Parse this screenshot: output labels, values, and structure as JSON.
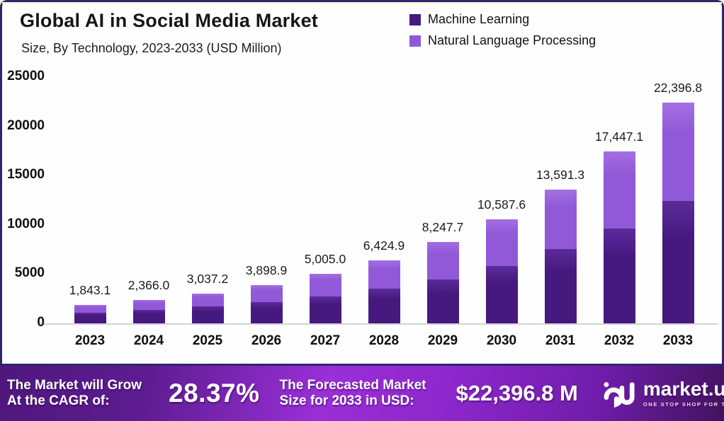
{
  "header": {
    "title": "Global AI in Social Media Market",
    "subtitle": "Size, By Technology, 2023-2033 (USD Million)"
  },
  "legend": [
    {
      "label": "Machine Learning",
      "color": "#46197f"
    },
    {
      "label": "Natural Language Processing",
      "color": "#9159d8"
    }
  ],
  "chart_data": {
    "type": "bar",
    "stacked": true,
    "title": "Global AI in Social Media Market Size, By Technology, 2023-2033 (USD Million)",
    "categories": [
      "2023",
      "2024",
      "2025",
      "2026",
      "2027",
      "2028",
      "2029",
      "2030",
      "2031",
      "2032",
      "2033"
    ],
    "series": [
      {
        "name": "Machine Learning",
        "color": "#46197f",
        "highlight": "#5c2b9a",
        "values": [
          1050,
          1340,
          1720,
          2120,
          2730,
          3510,
          4480,
          5800,
          7520,
          9640,
          12460
        ]
      },
      {
        "name": "Natural Language Processing",
        "color": "#9159d8",
        "highlight": "#a46fe3",
        "values": [
          793.1,
          1026.0,
          1317.2,
          1778.9,
          2275.0,
          2914.9,
          3767.7,
          4787.6,
          6071.3,
          7807.1,
          9936.8
        ]
      }
    ],
    "totals": [
      1843.1,
      2366.0,
      3037.2,
      3898.9,
      5005.0,
      6424.9,
      8247.7,
      10587.6,
      13591.3,
      17447.1,
      22396.8
    ],
    "total_labels": [
      "1,843.1",
      "2,366.0",
      "3,037.2",
      "3,898.9",
      "5,005.0",
      "6,424.9",
      "8,247.7",
      "10,587.6",
      "13,591.3",
      "17,447.1",
      "22,396.8"
    ],
    "xlabel": "",
    "ylabel": "",
    "ylim": [
      0,
      25000
    ],
    "yticks": [
      0,
      5000,
      10000,
      15000,
      20000,
      25000
    ],
    "ytick_labels": [
      "0",
      "5000",
      "10000",
      "15000",
      "20000",
      "25000"
    ],
    "grid": false,
    "legend_position": "top-right"
  },
  "footer": {
    "cagr_line1": "The Market will Grow",
    "cagr_line2": "At the CAGR of:",
    "cagr_value": "28.37%",
    "forecast_line1": "The Forecasted Market",
    "forecast_line2": "Size for 2033 in USD:",
    "forecast_value": "$22,396.8 M",
    "brand_name": "market.us",
    "brand_tagline": "ONE STOP SHOP FOR THE REPORTS"
  },
  "colors": {
    "frame_border": "#30266b",
    "card_background": "#fefefe",
    "cream_edge": "#fbf4e2",
    "axis_line": "#d4d2dc",
    "banner_purple_bright": "#9a2fd8",
    "banner_purple_dark": "#4f177c",
    "text": "#161616"
  }
}
